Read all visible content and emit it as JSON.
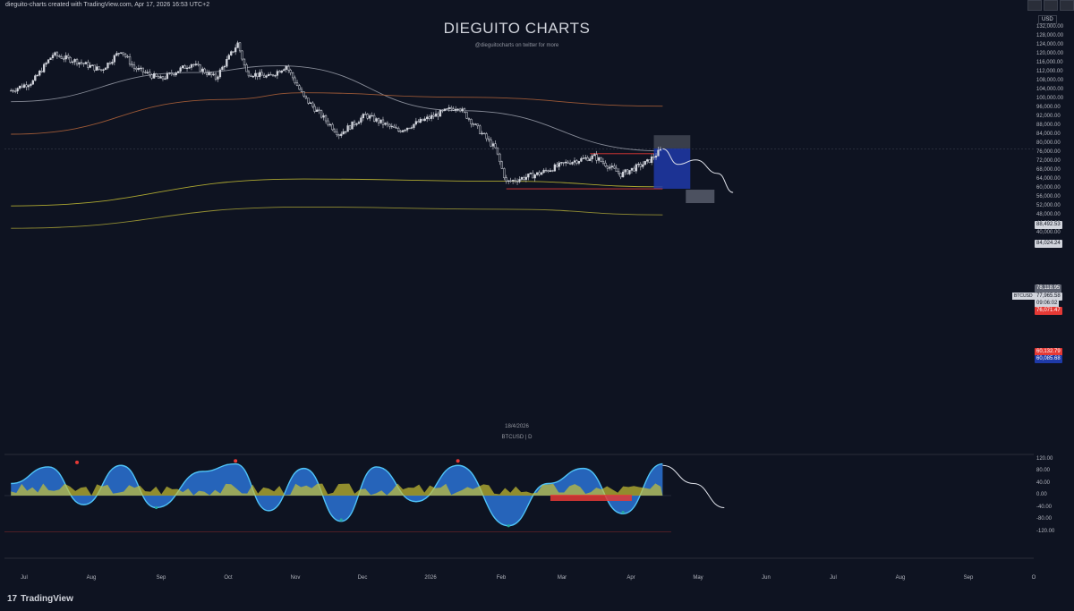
{
  "credit": "dieguito-charts created with TradingView.com, Apr 17, 2026 16:53 UTC+2",
  "watermark": {
    "title": "DIEGUITO CHARTS",
    "subtitle": "@dieguitocharts on twitter for more"
  },
  "date_label": "18/4/2026",
  "symbol_label": "BTCUSD | D",
  "currency": "USD",
  "symbol_tag": "BTCUSD",
  "price_axis": [
    "132,000.00",
    "128,000.00",
    "124,000.00",
    "120,000.00",
    "116,000.00",
    "112,000.00",
    "108,000.00",
    "104,000.00",
    "100,000.00",
    "96,000.00",
    "92,000.00",
    "88,000.00",
    "84,000.00",
    "80,000.00",
    "76,000.00",
    "72,000.00",
    "68,000.00",
    "64,000.00",
    "60,000.00",
    "56,000.00",
    "52,000.00",
    "48,000.00",
    "44,000.00",
    "40,000.00"
  ],
  "price_tags": {
    "level_1": "88,492.53",
    "level_2": "84,024.24",
    "level_3": "78,118.95",
    "last_price": "77,965.58",
    "countdown": "09:06:02",
    "level_4": "76,071.47",
    "level_5": "60,132.79",
    "level_6": "60,085.68"
  },
  "oscillator_axis": [
    "120.00",
    "80.00",
    "40.00",
    "0.00",
    "-40.00",
    "-80.00",
    "-120.00"
  ],
  "time_axis": [
    "Jul",
    "Aug",
    "Sep",
    "Oct",
    "Nov",
    "Dec",
    "2026",
    "Feb",
    "Mar",
    "Apr",
    "May",
    "Jun",
    "Jul",
    "Aug",
    "Sep",
    "O"
  ],
  "branding": {
    "logo_text": "TradingView",
    "logo_mark": "17"
  },
  "colors": {
    "background": "#0e1321",
    "candles": "#d1d4dc",
    "ma_white": "#9ba0ab",
    "ma_orange": "#b5653a",
    "ma_olive": "#c9c234",
    "ma_olive_dark": "#a9a336",
    "short_box_red": "#1e3aa8",
    "stop_box": "#5d6270",
    "osc_blue": "#2f80ed",
    "osc_yellow": "#c9c234",
    "osc_red": "#e53935"
  },
  "chart_data": {
    "type": "candlestick",
    "symbol": "BTCUSD",
    "interval": "D",
    "ylim": [
      40000,
      132000
    ],
    "price_points": [
      {
        "date": "2025-06-25",
        "price": 104000
      },
      {
        "date": "2025-07-05",
        "price": 108000
      },
      {
        "date": "2025-07-14",
        "price": 120000
      },
      {
        "date": "2025-07-25",
        "price": 117000
      },
      {
        "date": "2025-08-05",
        "price": 113000
      },
      {
        "date": "2025-08-14",
        "price": 122000
      },
      {
        "date": "2025-08-20",
        "price": 114000
      },
      {
        "date": "2025-09-01",
        "price": 109000
      },
      {
        "date": "2025-09-15",
        "price": 116000
      },
      {
        "date": "2025-09-26",
        "price": 109500
      },
      {
        "date": "2025-10-06",
        "price": 125000
      },
      {
        "date": "2025-10-10",
        "price": 112000
      },
      {
        "date": "2025-10-20",
        "price": 110000
      },
      {
        "date": "2025-10-28",
        "price": 115000
      },
      {
        "date": "2025-11-05",
        "price": 101000
      },
      {
        "date": "2025-11-21",
        "price": 84500
      },
      {
        "date": "2025-12-03",
        "price": 93000
      },
      {
        "date": "2025-12-18",
        "price": 86000
      },
      {
        "date": "2026-01-05",
        "price": 93500
      },
      {
        "date": "2026-01-14",
        "price": 97000
      },
      {
        "date": "2026-01-31",
        "price": 78000
      },
      {
        "date": "2026-02-05",
        "price": 63000
      },
      {
        "date": "2026-02-20",
        "price": 67000
      },
      {
        "date": "2026-03-05",
        "price": 72000
      },
      {
        "date": "2026-03-17",
        "price": 74500
      },
      {
        "date": "2026-03-29",
        "price": 66500
      },
      {
        "date": "2026-04-10",
        "price": 72000
      },
      {
        "date": "2026-04-17",
        "price": 77965
      }
    ],
    "projection": [
      {
        "date": "2026-04-17",
        "price": 77965
      },
      {
        "date": "2026-04-24",
        "price": 71000
      },
      {
        "date": "2026-05-02",
        "price": 73000
      },
      {
        "date": "2026-05-12",
        "price": 67000
      },
      {
        "date": "2026-05-19",
        "price": 58500
      }
    ],
    "moving_averages": [
      {
        "color": "white",
        "points": [
          {
            "date": "2025-06-25",
            "price": 99000
          },
          {
            "date": "2025-09-15",
            "price": 112000
          },
          {
            "date": "2025-10-25",
            "price": 115000
          },
          {
            "date": "2026-01-15",
            "price": 95000
          },
          {
            "date": "2026-04-17",
            "price": 77000
          }
        ]
      },
      {
        "color": "orange",
        "points": [
          {
            "date": "2025-06-25",
            "price": 84500
          },
          {
            "date": "2025-10-01",
            "price": 100000
          },
          {
            "date": "2025-11-05",
            "price": 103000
          },
          {
            "date": "2026-01-15",
            "price": 101000
          },
          {
            "date": "2026-04-17",
            "price": 97000
          }
        ]
      },
      {
        "color": "olive",
        "points": [
          {
            "date": "2025-06-25",
            "price": 52500
          },
          {
            "date": "2025-11-05",
            "price": 64500
          },
          {
            "date": "2026-02-05",
            "price": 63500
          },
          {
            "date": "2026-04-17",
            "price": 61000
          }
        ]
      },
      {
        "color": "olive-dark",
        "points": [
          {
            "date": "2025-06-25",
            "price": 42500
          },
          {
            "date": "2025-11-05",
            "price": 52000
          },
          {
            "date": "2026-02-05",
            "price": 51000
          },
          {
            "date": "2026-04-17",
            "price": 48500
          }
        ]
      }
    ],
    "short_position": {
      "entry": 78118.95,
      "stop_top": 84024.24,
      "target": 60132.79,
      "start": "2026-04-13",
      "end": "2026-05-15"
    },
    "horizontal_levels": [
      {
        "price": 60132.79,
        "from": "2026-02-05",
        "to": "2026-04-17",
        "color": "red"
      },
      {
        "price": 75800,
        "from": "2026-03-15",
        "to": "2026-04-13",
        "color": "red"
      }
    ],
    "oscillator": {
      "ylim": [
        -120,
        120
      ],
      "points": [
        {
          "date": "2025-06-25",
          "value": 40
        },
        {
          "date": "2025-07-12",
          "value": 95
        },
        {
          "date": "2025-07-28",
          "value": -30
        },
        {
          "date": "2025-08-14",
          "value": 100
        },
        {
          "date": "2025-08-30",
          "value": -40
        },
        {
          "date": "2025-09-20",
          "value": 80
        },
        {
          "date": "2025-10-05",
          "value": 105
        },
        {
          "date": "2025-10-20",
          "value": -50
        },
        {
          "date": "2025-11-05",
          "value": 90
        },
        {
          "date": "2025-11-22",
          "value": -85
        },
        {
          "date": "2025-12-08",
          "value": 95
        },
        {
          "date": "2025-12-26",
          "value": -20
        },
        {
          "date": "2026-01-14",
          "value": 100
        },
        {
          "date": "2026-02-06",
          "value": -100
        },
        {
          "date": "2026-02-24",
          "value": 40
        },
        {
          "date": "2026-03-12",
          "value": 90
        },
        {
          "date": "2026-03-30",
          "value": -60
        },
        {
          "date": "2026-04-17",
          "value": 105
        }
      ],
      "projection": [
        {
          "date": "2026-04-17",
          "value": 100
        },
        {
          "date": "2026-05-01",
          "value": 40
        },
        {
          "date": "2026-05-15",
          "value": -40
        }
      ]
    }
  }
}
